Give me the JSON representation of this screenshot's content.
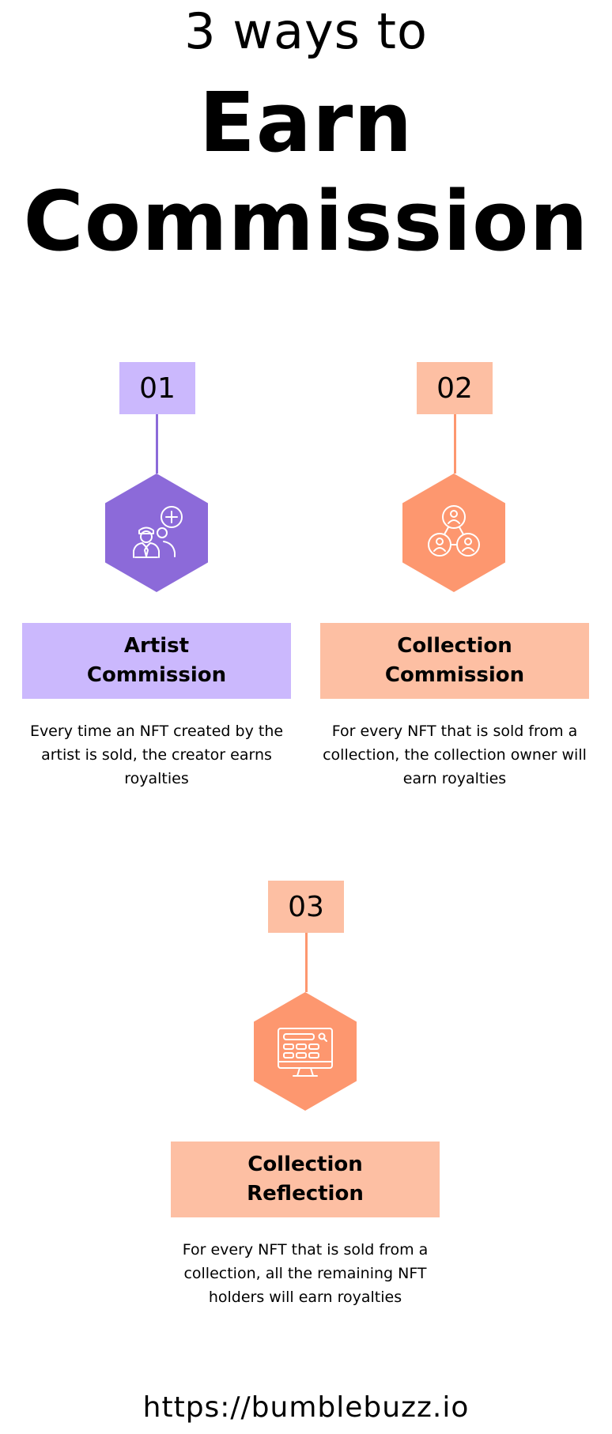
{
  "header": {
    "subtitle": "3 ways to",
    "title_line1": "Earn",
    "title_line2": "Commission"
  },
  "items": [
    {
      "number": "01",
      "title_line1": "Artist",
      "title_line2": "Commission",
      "description": "Every time an NFT created by the artist is sold, the creator earns royalties",
      "icon": "artist-add-user-icon",
      "number_bg": "#cbb8fd",
      "accent": "#8c6ad9",
      "label_bg": "#cbb8fd"
    },
    {
      "number": "02",
      "title_line1": "Collection",
      "title_line2": "Commission",
      "description": "For every NFT that is sold from a collection, the collection owner will earn royalties",
      "icon": "network-users-icon",
      "number_bg": "#fdbfa3",
      "accent": "#fd976f",
      "label_bg": "#fdbfa3"
    },
    {
      "number": "03",
      "title_line1": "Collection",
      "title_line2": "Reflection",
      "description": "For every NFT that is sold from a collection, all the remaining NFT holders will earn royalties",
      "icon": "monitor-dashboard-icon",
      "number_bg": "#fdbfa3",
      "accent": "#fd976f",
      "label_bg": "#fdbfa3"
    }
  ],
  "footer": {
    "url": "https://bumblebuzz.io"
  }
}
